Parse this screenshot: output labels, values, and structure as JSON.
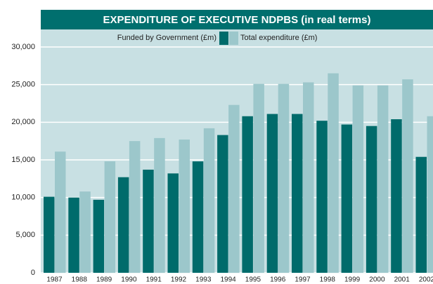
{
  "chart_data": {
    "type": "bar",
    "title": "EXPENDITURE OF EXECUTIVE NDPBS (in real terms)",
    "categories": [
      "1987",
      "1988",
      "1989",
      "1990",
      "1991",
      "1992",
      "1993",
      "1994",
      "1995",
      "1996",
      "1997",
      "1998",
      "1999",
      "2000",
      "2001",
      "2002"
    ],
    "series": [
      {
        "name": "Funded by Government (£m)",
        "color": "#006b6b",
        "values": [
          10100,
          10000,
          9700,
          12700,
          13700,
          13200,
          14800,
          18300,
          20800,
          21100,
          21100,
          20200,
          19700,
          19500,
          20400,
          15400
        ]
      },
      {
        "name": "Total expenditure (£m)",
        "color": "#9cc7cb",
        "values": [
          16100,
          10800,
          14800,
          17500,
          17900,
          17700,
          19200,
          22300,
          25100,
          25100,
          25300,
          26500,
          24900,
          24900,
          25700,
          20800
        ]
      }
    ],
    "ylim": [
      0,
      30000
    ],
    "yticks": [
      0,
      {
        "value": 5000,
        "label": "5,000"
      },
      {
        "value": 10000,
        "label": "10,000"
      },
      {
        "value": 15000,
        "label": "15,000"
      },
      {
        "value": 20000,
        "label": "20,000"
      },
      {
        "value": 25000,
        "label": "25,000"
      },
      {
        "value": 30000,
        "label": "30,000"
      }
    ],
    "grid": true
  }
}
